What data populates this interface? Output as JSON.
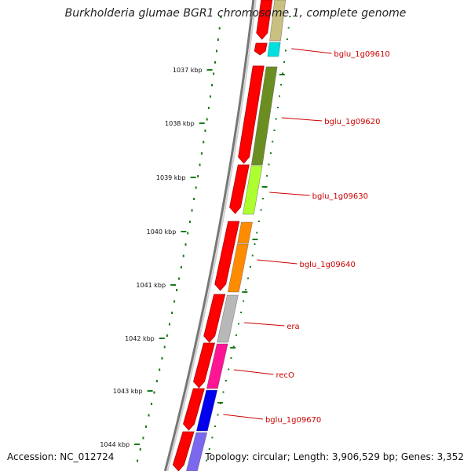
{
  "title": "Burkholderia glumae BGR1 chromosome 1, complete genome",
  "accession": "Accession: NC_012724",
  "topology": "Topology: circular; Length: 3,906,529 bp; Genes: 3,352",
  "scale_ticks": [
    "1037 kbp",
    "1038 kbp",
    "1039 kbp",
    "1040 kbp",
    "1041 kbp",
    "1042 kbp",
    "1043 kbp",
    "1044 kbp"
  ],
  "gene_labels": [
    "bglu_1g09610",
    "bglu_1g09620",
    "bglu_1g09630",
    "bglu_1g09640",
    "era",
    "recO",
    "bglu_1g09670"
  ],
  "colors": {
    "cds": "#ff0000",
    "backbone": "#888888",
    "tick": "#1a7a1a",
    "label": "#cc0000"
  },
  "cog_colors": [
    "#c8bf80",
    "#00e0e0",
    "#6b8e23",
    "#adff2f",
    "#ff8c00",
    "#b8b8b8",
    "#ff1493",
    "#0000ee",
    "#7b68ee"
  ]
}
